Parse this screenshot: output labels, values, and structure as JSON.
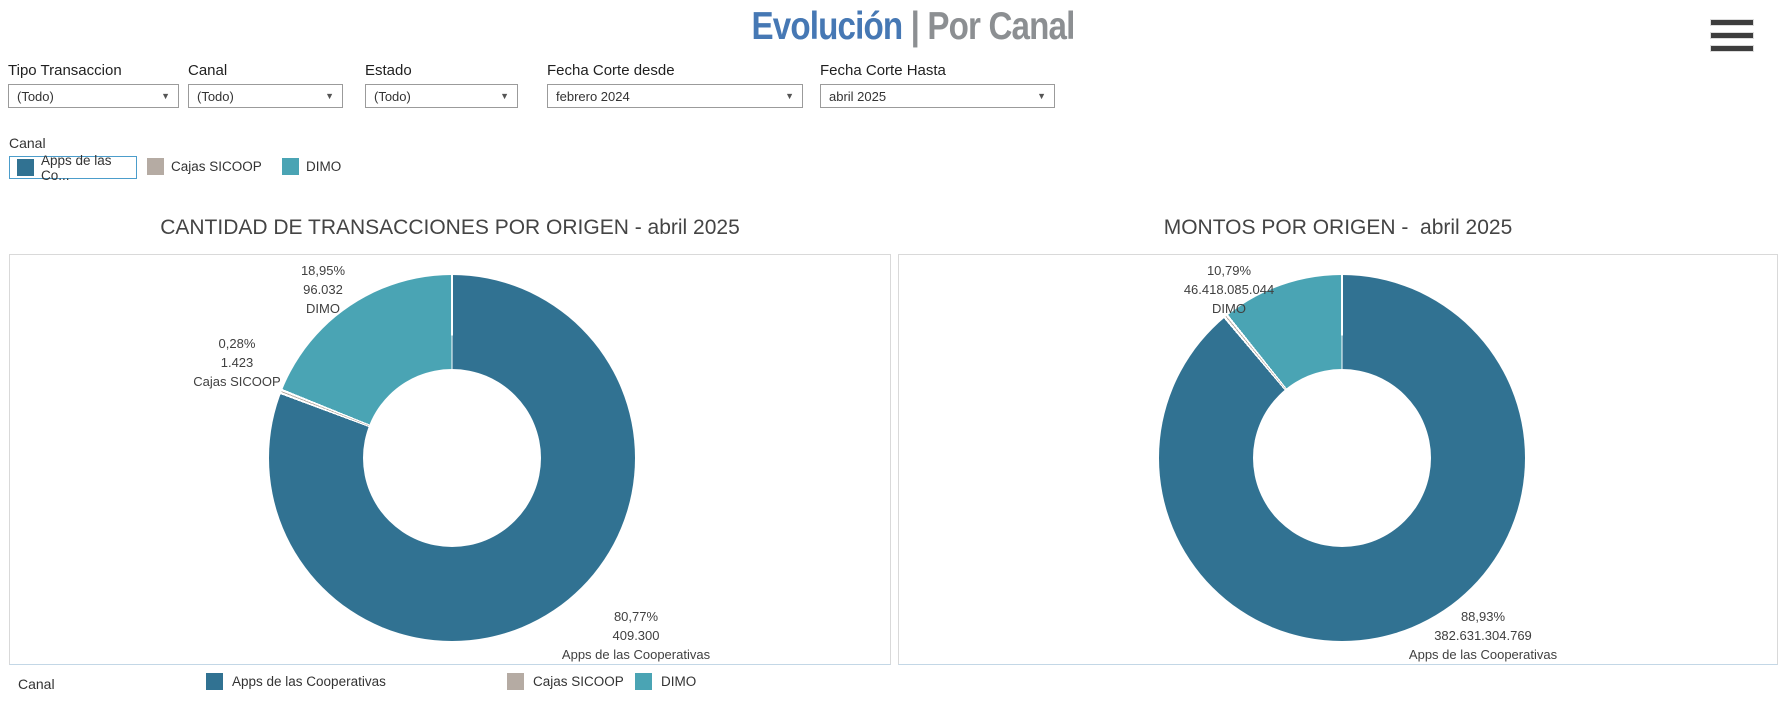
{
  "header": {
    "title_primary": "Evolución",
    "title_secondary": "| Por Canal"
  },
  "menu": {
    "icon": "hamburger-menu-icon"
  },
  "filters": [
    {
      "label": "Tipo Transaccion",
      "value": "(Todo)"
    },
    {
      "label": "Canal",
      "value": "(Todo)"
    },
    {
      "label": "Estado",
      "value": "(Todo)"
    },
    {
      "label": "Fecha Corte desde",
      "value": "febrero 2024"
    },
    {
      "label": "Fecha Corte Hasta",
      "value": "abril 2025"
    }
  ],
  "canal_filter": {
    "title": "Canal",
    "items": [
      {
        "label": "Apps de las Co...",
        "color_key": "apps",
        "selected": true
      },
      {
        "label": "Cajas SICOOP",
        "color_key": "cajas",
        "selected": false
      },
      {
        "label": "DIMO",
        "color_key": "dimo",
        "selected": false
      }
    ]
  },
  "colors": {
    "apps": "#317292",
    "cajas": "#b5aba3",
    "dimo": "#4aa4b4",
    "highlight": "#4c9dcb",
    "title_blue": "#4678b4",
    "title_gray": "#8c8f92"
  },
  "chart_data": [
    {
      "type": "pie",
      "subtype": "donut",
      "title": "CANTIDAD DE TRANSACCIONES POR ORIGEN - abril 2025",
      "legend_position": "bottom-left",
      "slices": [
        {
          "name": "Apps de las Cooperativas",
          "pct": 80.77,
          "pct_label": "80,77%",
          "value": 409300,
          "value_label": "409.300",
          "color_key": "apps"
        },
        {
          "name": "Cajas SICOOP",
          "pct": 0.28,
          "pct_label": "0,28%",
          "value": 1423,
          "value_label": "1.423",
          "color_key": "cajas"
        },
        {
          "name": "DIMO",
          "pct": 18.95,
          "pct_label": "18,95%",
          "value": 96032,
          "value_label": "96.032",
          "color_key": "dimo"
        }
      ]
    },
    {
      "type": "pie",
      "subtype": "donut",
      "title": "MONTOS POR ORIGEN -  abril 2025",
      "legend_position": "bottom-left",
      "slices": [
        {
          "name": "Apps de las Cooperativas",
          "pct": 88.93,
          "pct_label": "88,93%",
          "value": 382631304769,
          "value_label": "382.631.304.769",
          "color_key": "apps"
        },
        {
          "name": "Cajas SICOOP",
          "pct": 0.28,
          "pct_label": "",
          "value_label": "",
          "color_key": "cajas"
        },
        {
          "name": "DIMO",
          "pct": 10.79,
          "pct_label": "10,79%",
          "value": 46418085044,
          "value_label": "46.418.085.044",
          "color_key": "dimo"
        }
      ]
    }
  ],
  "legend": {
    "title": "Canal",
    "items": [
      {
        "label": "Apps de las Cooperativas",
        "color_key": "apps"
      },
      {
        "label": "Cajas SICOOP",
        "color_key": "cajas"
      },
      {
        "label": "DIMO",
        "color_key": "dimo"
      }
    ]
  }
}
